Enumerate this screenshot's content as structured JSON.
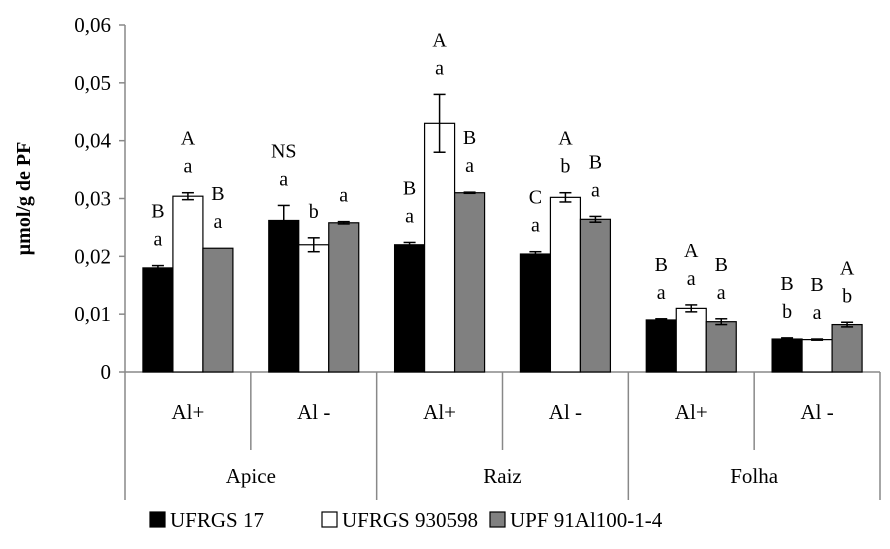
{
  "chart_data": {
    "type": "bar",
    "ylabel": "µmol/g de PF",
    "ylim": [
      0,
      0.06
    ],
    "yticks": [
      "0",
      "0,01",
      "0,02",
      "0,03",
      "0,04",
      "0,05",
      "0,06"
    ],
    "grid": false,
    "legend_position": "bottom",
    "groups": [
      {
        "label": "Apice",
        "subcategories": [
          "Al+",
          "Al -"
        ]
      },
      {
        "label": "Raiz",
        "subcategories": [
          "Al+",
          "Al -"
        ]
      },
      {
        "label": "Folha",
        "subcategories": [
          "Al+",
          "Al -"
        ]
      }
    ],
    "categories": [
      "Al+",
      "Al -",
      "Al+",
      "Al -",
      "Al+",
      "Al -"
    ],
    "series": [
      {
        "name": "UFRGS 17",
        "color": "#000000",
        "values": [
          0.018,
          0.0262,
          0.022,
          0.0204,
          0.009,
          0.0057
        ],
        "errors": [
          0.0004,
          0.0026,
          0.0004,
          0.0004,
          0.0002,
          0.0002
        ],
        "letters_upper": [
          "B",
          "NS",
          "B",
          "C",
          "B",
          "B"
        ],
        "letters_lower": [
          "a",
          "a",
          "a",
          "a",
          "a",
          "b"
        ]
      },
      {
        "name": "UFRGS 930598",
        "color": "#ffffff",
        "values": [
          0.0304,
          0.022,
          0.043,
          0.0302,
          0.011,
          0.0056
        ],
        "errors": [
          0.0006,
          0.0012,
          0.005,
          0.0008,
          0.0006,
          0.0001
        ],
        "letters_upper": [
          "A",
          "",
          "A",
          "A",
          "A",
          "B"
        ],
        "letters_lower": [
          "a",
          "b",
          "a",
          "b",
          "a",
          "a"
        ]
      },
      {
        "name": "UPF 91Al100-1-4",
        "color": "#808080",
        "values": [
          0.0214,
          0.0258,
          0.031,
          0.0264,
          0.0087,
          0.0082
        ],
        "errors": [
          0.0,
          0.0002,
          0.0001,
          0.0005,
          0.0005,
          0.0004
        ],
        "letters_upper": [
          "B",
          "",
          "B",
          "B",
          "B",
          "A"
        ],
        "letters_lower": [
          "a",
          "a",
          "a",
          "a",
          "a",
          "b"
        ]
      }
    ]
  }
}
